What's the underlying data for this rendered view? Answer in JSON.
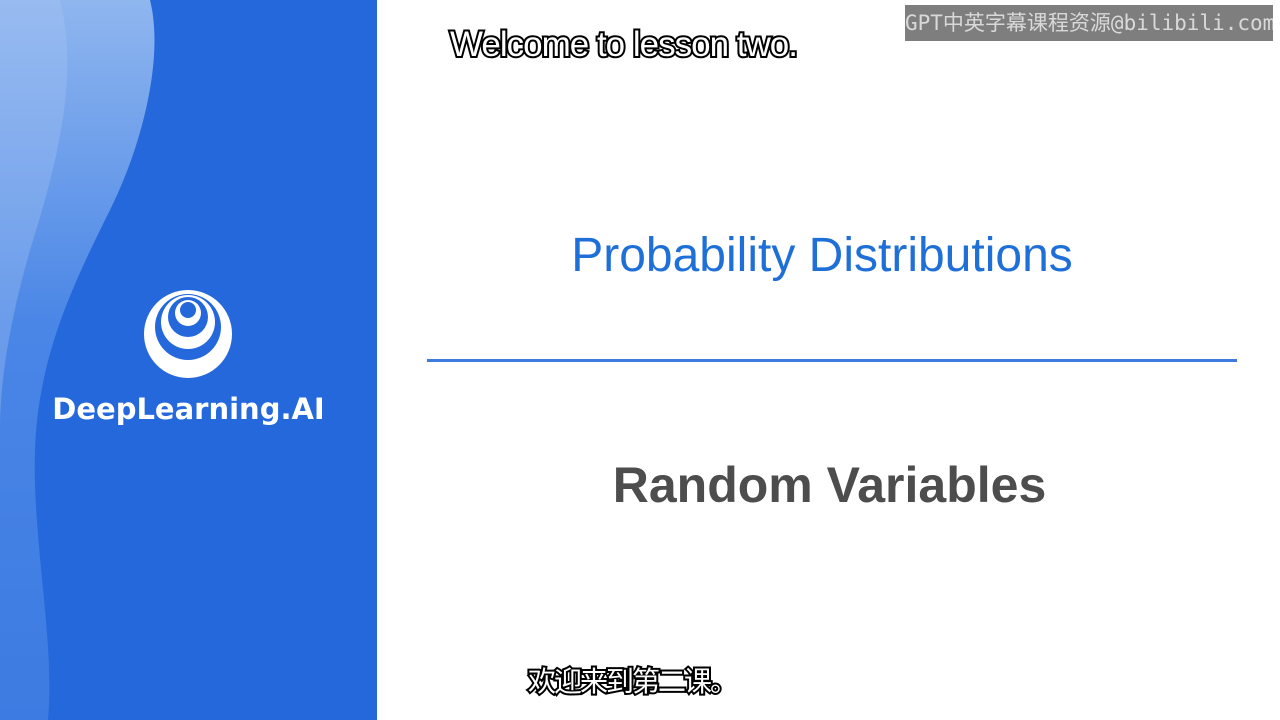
{
  "brand": {
    "name": "DeepLearning.AI",
    "logo": "concentric-circles-logo"
  },
  "slide": {
    "course_title": "Probability Distributions",
    "lesson_title": "Random Variables"
  },
  "subtitles": {
    "english": "Welcome to lesson two.",
    "chinese": "欢迎来到第二课。"
  },
  "watermark": {
    "text": "GPT中英字幕课程资源@bilibili.com"
  },
  "colors": {
    "brand_blue": "#2468dc",
    "title_blue": "#1f6fd8",
    "lesson_gray": "#4d4d4d"
  }
}
